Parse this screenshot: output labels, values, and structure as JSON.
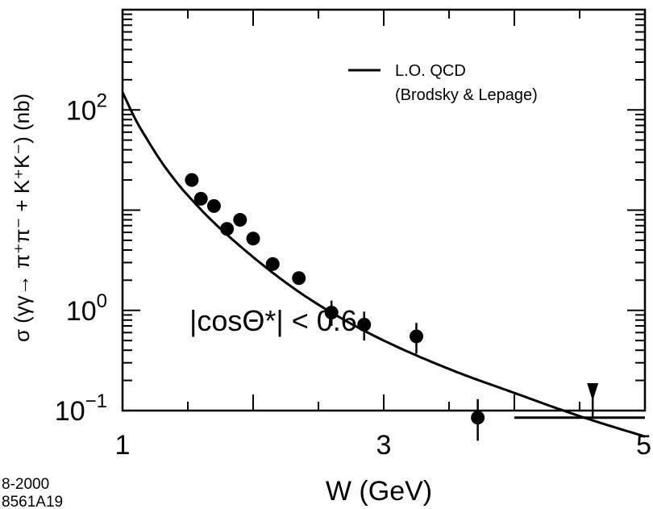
{
  "chart_data": {
    "type": "scatter",
    "xlabel": "W (GeV)",
    "ylabel": "σ (γγ→ π⁺π⁻ + K⁺K⁻) (nb)",
    "x_scale": "linear",
    "y_scale": "log",
    "xlim": [
      1,
      5
    ],
    "ylim": [
      0.1,
      1000
    ],
    "x_ticks": [
      {
        "value": 1,
        "label": "1"
      },
      {
        "value": 3,
        "label": "3"
      },
      {
        "value": 5,
        "label": "5"
      }
    ],
    "y_ticks": [
      {
        "value": 100,
        "mant": "10",
        "exp": "2"
      },
      {
        "value": 1,
        "mant": "10",
        "exp": "0"
      },
      {
        "value": 0.1,
        "mant": "10",
        "exp": "−1"
      }
    ],
    "annotation": {
      "cut": "|cosΘ*| < 0.6"
    },
    "legend": {
      "position": "top-right",
      "line1": "L.O. QCD",
      "line2": "(Brodsky & Lepage)"
    },
    "footer": {
      "date": "8-2000",
      "code": "8561A19"
    },
    "series": [
      {
        "name": "L.O. QCD",
        "kind": "line",
        "x": [
          1.0,
          1.1,
          1.2,
          1.3,
          1.4,
          1.5,
          1.7,
          2.0,
          2.3,
          2.6,
          3.0,
          3.5,
          4.0,
          4.5,
          5.0
        ],
        "y": [
          150,
          80,
          48,
          30,
          20,
          14,
          7.5,
          3.4,
          1.7,
          0.95,
          0.5,
          0.26,
          0.15,
          0.088,
          0.055
        ]
      },
      {
        "kind": "points",
        "x": [
          1.53,
          1.6,
          1.7,
          1.8,
          1.9,
          2.0,
          2.15,
          2.35,
          2.6,
          2.85,
          3.25,
          3.72
        ],
        "y": [
          20,
          13,
          11,
          6.5,
          8,
          5.2,
          2.9,
          2.1,
          0.95,
          0.72,
          0.55,
          0.085
        ],
        "err_lo": [
          0,
          0,
          0,
          0,
          0,
          0,
          0,
          0,
          0.25,
          0.22,
          0.18,
          0.035
        ],
        "err_hi": [
          0,
          0,
          0,
          0,
          0,
          0,
          0,
          0,
          0.3,
          0.25,
          0.2,
          0.045
        ]
      }
    ],
    "upper_limit": {
      "x_from": 4.0,
      "x_to": 5.0,
      "y": 0.085,
      "x_arrow": 4.6,
      "y_arrow_end": 0.1
    }
  },
  "colors": {
    "ink": "#000000",
    "background": "#ffffff"
  }
}
